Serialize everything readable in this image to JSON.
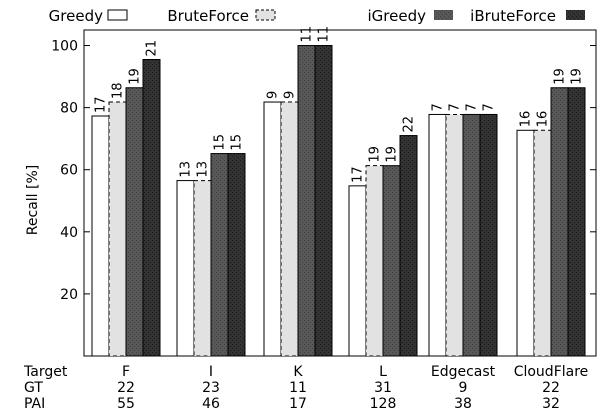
{
  "chart_data": {
    "type": "bar",
    "title": "",
    "xlabel": "",
    "ylabel": "Recall [%]",
    "ylim": [
      0,
      105
    ],
    "yticks": [
      20,
      40,
      60,
      80,
      100
    ],
    "categories": [
      "F",
      "I",
      "K",
      "L",
      "Edgecast",
      "CloudFlare"
    ],
    "series": [
      {
        "name": "Greedy",
        "values": [
          77.3,
          56.5,
          81.8,
          54.8,
          77.8,
          72.7
        ],
        "labels": [
          "17",
          "13",
          "9",
          "17",
          "7",
          "16"
        ],
        "fill": "#ffffff",
        "dashed": false
      },
      {
        "name": "BruteForce",
        "values": [
          81.8,
          56.5,
          81.8,
          61.3,
          77.8,
          72.7
        ],
        "labels": [
          "18",
          "13",
          "9",
          "19",
          "7",
          "16"
        ],
        "fill": "#e2e2e2",
        "dashed": true
      },
      {
        "name": "iGreedy",
        "values": [
          86.4,
          65.2,
          100,
          61.3,
          77.8,
          86.4
        ],
        "labels": [
          "19",
          "15",
          "11",
          "19",
          "7",
          "19"
        ],
        "fill": "#575757",
        "dashed": false
      },
      {
        "name": "iBruteForce",
        "values": [
          95.5,
          65.2,
          100,
          71.0,
          77.8,
          86.4
        ],
        "labels": [
          "21",
          "15",
          "11",
          "22",
          "7",
          "19"
        ],
        "fill": "#333333",
        "dashed": false
      }
    ],
    "table": {
      "rows": [
        {
          "label": "Target",
          "values": [
            "F",
            "I",
            "K",
            "L",
            "Edgecast",
            "CloudFlare"
          ]
        },
        {
          "label": "GT",
          "values": [
            "22",
            "23",
            "11",
            "31",
            "9",
            "22"
          ]
        },
        {
          "label": "PAI",
          "values": [
            "55",
            "46",
            "17",
            "128",
            "38",
            "32"
          ]
        }
      ]
    },
    "legend": {
      "placement": "top"
    },
    "grid": false
  }
}
